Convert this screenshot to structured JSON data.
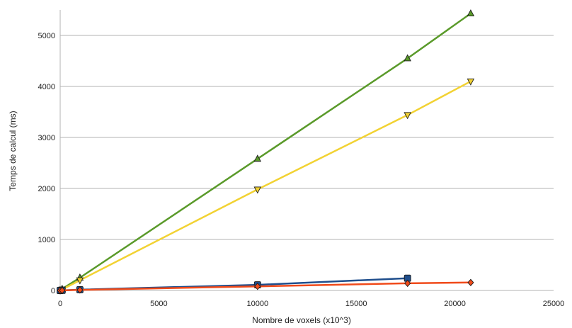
{
  "chart_data": {
    "type": "line",
    "title": "",
    "xlabel": "Nombre de voxels (x10^3)",
    "ylabel": "Temps de calcul (ms)",
    "xlim": [
      0,
      25000
    ],
    "ylim": [
      0,
      5500
    ],
    "xticks": [
      0,
      5000,
      10000,
      15000,
      20000,
      25000
    ],
    "yticks": [
      0,
      1000,
      2000,
      3000,
      4000,
      5000
    ],
    "grid": "horizontal",
    "legend": "none",
    "series": [
      {
        "color": "#5a9a2a",
        "marker": "triangle-up",
        "x": [
          0,
          100,
          1000,
          10000,
          17600,
          20800
        ],
        "y": [
          0,
          30,
          250,
          2580,
          4550,
          5430
        ]
      },
      {
        "color": "#f2d233",
        "marker": "triangle-down",
        "x": [
          0,
          100,
          1000,
          10000,
          17600,
          20800
        ],
        "y": [
          0,
          20,
          200,
          1980,
          3440,
          4100
        ]
      },
      {
        "color": "#1f4e8c",
        "marker": "square",
        "x": [
          0,
          100,
          1000,
          10000,
          17600
        ],
        "y": [
          0,
          2,
          15,
          110,
          240
        ]
      },
      {
        "color": "#f04a1a",
        "marker": "diamond",
        "x": [
          0,
          100,
          1000,
          10000,
          17600,
          20800
        ],
        "y": [
          0,
          1,
          10,
          80,
          140,
          155
        ]
      }
    ]
  }
}
